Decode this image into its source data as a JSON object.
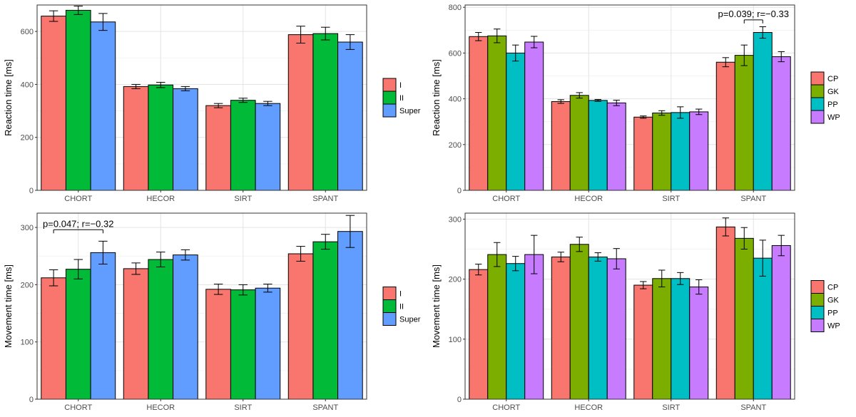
{
  "chart_data": [
    {
      "type": "bar",
      "panel": "top-left",
      "ylabel": "Reaction time [ms]",
      "ylim": [
        0,
        700
      ],
      "yticks": [
        0,
        200,
        400,
        600
      ],
      "categories": [
        "CHORT",
        "HECOR",
        "SIRT",
        "SPANT"
      ],
      "legend": {
        "entries": [
          "I",
          "II",
          "Super"
        ],
        "colors": [
          "#F8766D",
          "#00BA38",
          "#619CFF"
        ]
      },
      "series": [
        {
          "name": "I",
          "values": [
            658,
            392,
            320,
            588
          ],
          "errors": [
            20,
            8,
            8,
            32
          ]
        },
        {
          "name": "II",
          "values": [
            680,
            398,
            340,
            592
          ],
          "errors": [
            16,
            10,
            8,
            24
          ]
        },
        {
          "name": "Super",
          "values": [
            636,
            384,
            328,
            560
          ],
          "errors": [
            32,
            8,
            8,
            28
          ]
        }
      ],
      "annotation": null
    },
    {
      "type": "bar",
      "panel": "top-right",
      "ylabel": "Reaction time [ms]",
      "ylim": [
        0,
        810
      ],
      "yticks": [
        0,
        200,
        400,
        600,
        800
      ],
      "categories": [
        "CHORT",
        "HECOR",
        "SIRT",
        "SPANT"
      ],
      "legend": {
        "entries": [
          "CP",
          "GK",
          "PP",
          "WP"
        ],
        "colors": [
          "#F8766D",
          "#7CAE00",
          "#00BFC4",
          "#C77CFF"
        ]
      },
      "series": [
        {
          "name": "CP",
          "values": [
            672,
            388,
            320,
            560
          ],
          "errors": [
            18,
            8,
            5,
            20
          ]
        },
        {
          "name": "GK",
          "values": [
            675,
            415,
            338,
            590
          ],
          "errors": [
            30,
            12,
            10,
            45
          ]
        },
        {
          "name": "PP",
          "values": [
            600,
            393,
            340,
            690
          ],
          "errors": [
            35,
            4,
            25,
            25
          ]
        },
        {
          "name": "WP",
          "values": [
            648,
            382,
            343,
            584
          ],
          "errors": [
            25,
            12,
            12,
            22
          ]
        }
      ],
      "annotation": {
        "text": "p=0.039; r=−0.33",
        "category": "SPANT",
        "from_series": 1,
        "to_series": 2,
        "y": 745
      }
    },
    {
      "type": "bar",
      "panel": "bottom-left",
      "ylabel": "Movement time [ms]",
      "ylim": [
        0,
        325
      ],
      "yticks": [
        0,
        100,
        200,
        300
      ],
      "categories": [
        "CHORT",
        "HECOR",
        "SIRT",
        "SPANT"
      ],
      "legend": {
        "entries": [
          "I",
          "II",
          "Super"
        ],
        "colors": [
          "#F8766D",
          "#00BA38",
          "#619CFF"
        ]
      },
      "series": [
        {
          "name": "I",
          "values": [
            212,
            228,
            192,
            254
          ],
          "errors": [
            14,
            10,
            9,
            13
          ]
        },
        {
          "name": "II",
          "values": [
            227,
            244,
            191,
            275
          ],
          "errors": [
            17,
            13,
            9,
            13
          ]
        },
        {
          "name": "Super",
          "values": [
            256,
            252,
            194,
            293
          ],
          "errors": [
            20,
            9,
            7,
            28
          ]
        }
      ],
      "annotation": {
        "text": "p=0.047; r=−0.32",
        "category": "CHORT",
        "from_series": 0,
        "to_series": 2,
        "y": 296
      }
    },
    {
      "type": "bar",
      "panel": "bottom-right",
      "ylabel": "Movement time [ms]",
      "ylim": [
        0,
        310
      ],
      "yticks": [
        0,
        100,
        200,
        300
      ],
      "categories": [
        "CHORT",
        "HECOR",
        "SIRT",
        "SPANT"
      ],
      "legend": {
        "entries": [
          "CP",
          "GK",
          "PP",
          "WP"
        ],
        "colors": [
          "#F8766D",
          "#7CAE00",
          "#00BFC4",
          "#C77CFF"
        ]
      },
      "series": [
        {
          "name": "CP",
          "values": [
            216,
            237,
            190,
            287
          ],
          "errors": [
            9,
            8,
            6,
            15
          ]
        },
        {
          "name": "GK",
          "values": [
            241,
            258,
            201,
            268
          ],
          "errors": [
            20,
            12,
            14,
            18
          ]
        },
        {
          "name": "PP",
          "values": [
            226,
            237,
            201,
            235
          ],
          "errors": [
            12,
            7,
            10,
            30
          ]
        },
        {
          "name": "WP",
          "values": [
            241,
            234,
            187,
            256
          ],
          "errors": [
            32,
            17,
            12,
            17
          ]
        }
      ],
      "annotation": null
    }
  ]
}
